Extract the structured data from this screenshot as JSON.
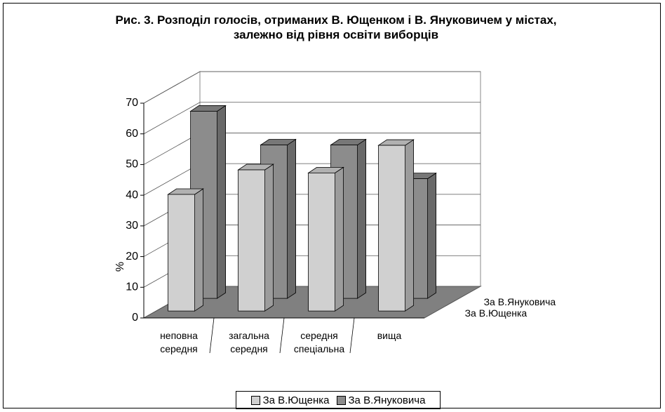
{
  "chart_data": {
    "type": "bar3d",
    "title": "Рис. 3. Розподіл голосів, отриманих В. Ющенком і В. Януковичем у містах, залежно від рівня освіти виборців",
    "ylabel": "%",
    "categories": [
      "неповна середня",
      "загальна середня",
      "середня спеціальна",
      "вища"
    ],
    "series": [
      {
        "name": "За В.Ющенка",
        "color": "#d0d0d0",
        "values": [
          38,
          46,
          45,
          54
        ]
      },
      {
        "name": "За В.Януковича",
        "color": "#8c8c8c",
        "values": [
          61,
          50,
          50,
          39
        ]
      }
    ],
    "ylim": [
      0,
      70
    ],
    "yticks": [
      0,
      10,
      20,
      30,
      40,
      50,
      60,
      70
    ],
    "grid": true,
    "legend": "bottom"
  }
}
